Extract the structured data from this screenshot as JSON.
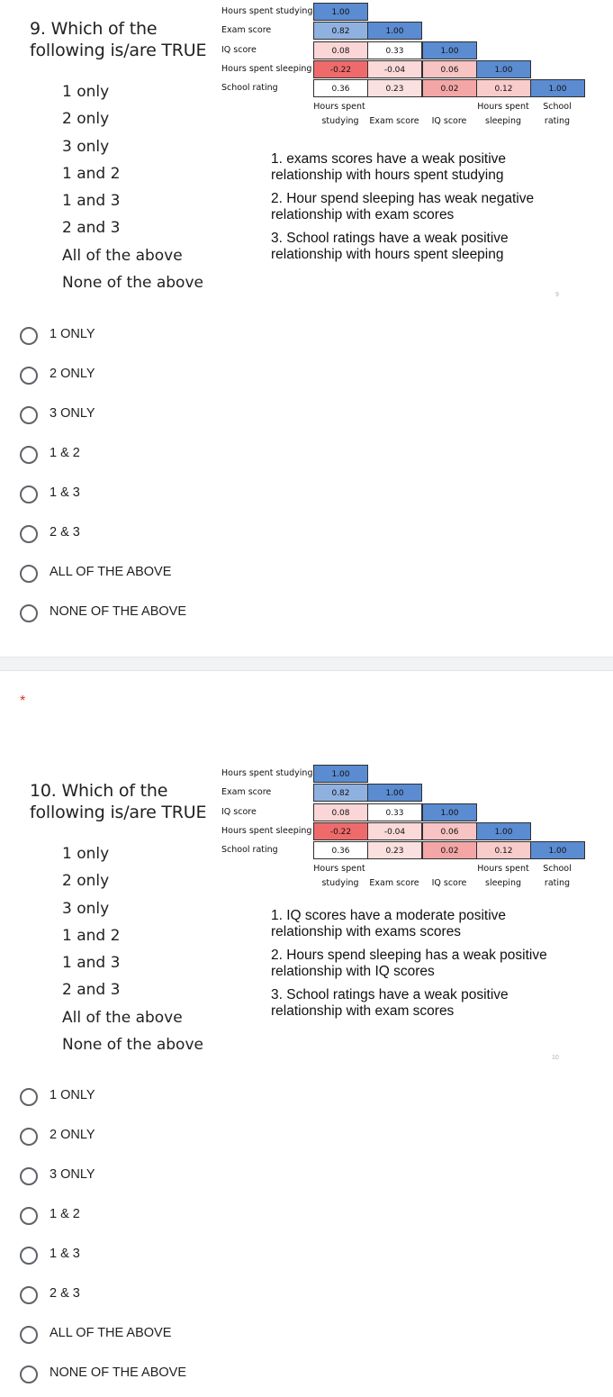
{
  "questions": [
    {
      "title_line1": "9. Which of the",
      "title_line2": "following is/are TRUE",
      "options": [
        "1 only",
        "2 only",
        "3 only",
        "1 and 2",
        "1 and 3",
        "2 and 3",
        "All of the above",
        "None of the above"
      ],
      "matrix": {
        "row_labels": [
          "Hours spent studying",
          "Exam score",
          "IQ score",
          "Hours spent sleeping",
          "School rating"
        ],
        "col_labels": [
          [
            "Hours spent",
            "studying"
          ],
          [
            "",
            "Exam score"
          ],
          [
            "",
            "IQ score"
          ],
          [
            "Hours spent",
            "sleeping"
          ],
          [
            "School",
            "rating"
          ]
        ],
        "values": [
          [
            "1.00"
          ],
          [
            "0.82",
            "1.00"
          ],
          [
            "0.08",
            "0.33",
            "1.00"
          ],
          [
            "-0.22",
            "-0.04",
            "0.06",
            "1.00"
          ],
          [
            "0.36",
            "0.23",
            "0.02",
            "0.12",
            "1.00"
          ]
        ],
        "colors": [
          [
            "#5b8bd1"
          ],
          [
            "#8fb1e0",
            "#5b8bd1"
          ],
          [
            "#fbd6d6",
            "#ffffff",
            "#5b8bd1"
          ],
          [
            "#ef6b6b",
            "#fbd9d9",
            "#f8c3c3",
            "#5b8bd1"
          ],
          [
            "#ffffff",
            "#fbe0e0",
            "#f4a6a6",
            "#f9cccc",
            "#5b8bd1"
          ]
        ]
      },
      "statements": [
        "1. exams scores have a weak positive relationship with hours spent studying",
        "2. Hour spend sleeping has weak negative relationship with exam scores",
        "3. School ratings have a weak positive relationship with hours spent sleeping"
      ],
      "page_number": "9",
      "choices": [
        "1 ONLY",
        "2 ONLY",
        "3 ONLY",
        "1 & 2",
        "1 & 3",
        "2 & 3",
        "ALL OF THE ABOVE",
        "NONE OF THE ABOVE"
      ]
    },
    {
      "required_marker": "*",
      "title_line1": "10. Which of the",
      "title_line2": "following is/are TRUE",
      "options": [
        "1 only",
        "2 only",
        "3 only",
        "1 and 2",
        "1 and 3",
        "2 and 3",
        "All of the above",
        "None of the above"
      ],
      "matrix": {
        "row_labels": [
          "Hours spent studying",
          "Exam score",
          "IQ score",
          "Hours spent sleeping",
          "School rating"
        ],
        "col_labels": [
          [
            "Hours spent",
            "studying"
          ],
          [
            "",
            "Exam score"
          ],
          [
            "",
            "IQ score"
          ],
          [
            "Hours spent",
            "sleeping"
          ],
          [
            "School",
            "rating"
          ]
        ],
        "values": [
          [
            "1.00"
          ],
          [
            "0.82",
            "1.00"
          ],
          [
            "0.08",
            "0.33",
            "1.00"
          ],
          [
            "-0.22",
            "-0.04",
            "0.06",
            "1.00"
          ],
          [
            "0.36",
            "0.23",
            "0.02",
            "0.12",
            "1.00"
          ]
        ],
        "colors": [
          [
            "#5b8bd1"
          ],
          [
            "#8fb1e0",
            "#5b8bd1"
          ],
          [
            "#fbd6d6",
            "#ffffff",
            "#5b8bd1"
          ],
          [
            "#ef6b6b",
            "#fbd9d9",
            "#f8c3c3",
            "#5b8bd1"
          ],
          [
            "#ffffff",
            "#fbe0e0",
            "#f4a6a6",
            "#f9cccc",
            "#5b8bd1"
          ]
        ]
      },
      "statements": [
        "1. IQ scores have a moderate positive relationship with exams scores",
        "2. Hours spend sleeping has a weak positive relationship with IQ scores",
        "3. School ratings have a weak positive relationship with exam scores"
      ],
      "page_number": "10",
      "choices": [
        "1 ONLY",
        "2 ONLY",
        "3 ONLY",
        "1 & 2",
        "1 & 3",
        "2 & 3",
        "ALL OF THE ABOVE",
        "NONE OF THE ABOVE"
      ]
    }
  ]
}
